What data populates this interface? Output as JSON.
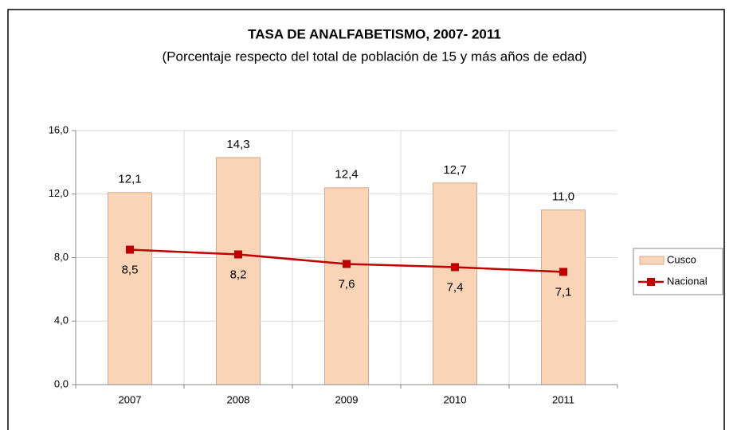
{
  "chart_data": {
    "type": "combo",
    "title": "TASA DE ANALFABETISMO,  2007- 2011",
    "subtitle": "(Porcentaje respecto del total de población de 15 y más años de edad)",
    "categories": [
      "2007",
      "2008",
      "2009",
      "2010",
      "2011"
    ],
    "series": [
      {
        "name": "Cusco",
        "type": "bar",
        "color": "#fad4b6",
        "values": [
          12.1,
          14.3,
          12.4,
          12.7,
          11.0
        ],
        "value_labels": [
          "12,1",
          "14,3",
          "12,4",
          "12,7",
          "11,0"
        ]
      },
      {
        "name": "Nacional",
        "type": "line",
        "color": "#c00000",
        "values": [
          8.5,
          8.2,
          7.6,
          7.4,
          7.1
        ],
        "value_labels": [
          "8,5",
          "8,2",
          "7,6",
          "7,4",
          "7,1"
        ]
      }
    ],
    "ylim": [
      0,
      16
    ],
    "yticks": [
      {
        "value": 0,
        "label": "0,0"
      },
      {
        "value": 4,
        "label": "4,0"
      },
      {
        "value": 8,
        "label": "8,0"
      },
      {
        "value": 12,
        "label": "12,0"
      },
      {
        "value": 16,
        "label": "16,0"
      }
    ],
    "grid": true,
    "legend": "right"
  }
}
